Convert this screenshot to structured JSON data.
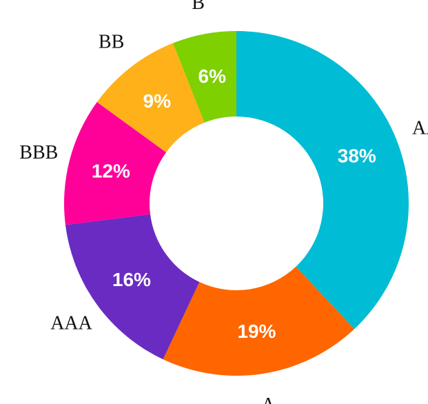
{
  "chart_data": {
    "type": "pie",
    "variant": "donut",
    "categories": [
      "AA",
      "A",
      "AAA",
      "BBB",
      "BB",
      "B"
    ],
    "values": [
      38,
      19,
      16,
      12,
      9,
      6
    ],
    "value_labels": [
      "38%",
      "19%",
      "16%",
      "12%",
      "9%",
      "6%"
    ],
    "colors": [
      "#00BCD4",
      "#FF6600",
      "#6A2BC2",
      "#FF0099",
      "#FFB11A",
      "#7ED000"
    ],
    "start_angle_deg": 0,
    "direction": "clockwise",
    "legend": "none"
  }
}
